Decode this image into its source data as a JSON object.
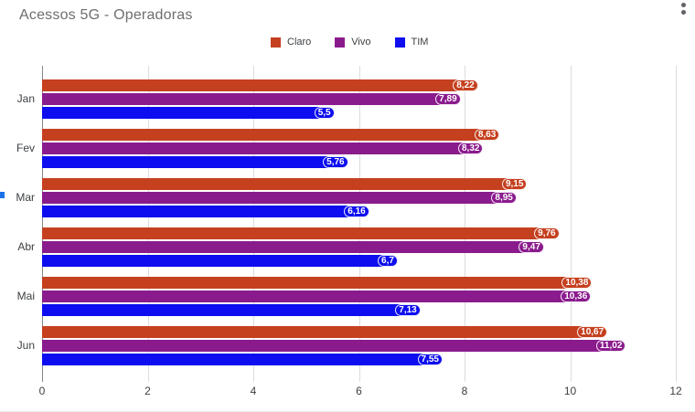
{
  "chart_data": {
    "type": "bar",
    "orientation": "horizontal",
    "title": "Acessos 5G - Operadoras",
    "categories": [
      "Jan",
      "Fev",
      "Mar",
      "Abr",
      "Mai",
      "Jun"
    ],
    "series": [
      {
        "name": "Claro",
        "color": "#C5401F",
        "values": [
          8.22,
          8.63,
          9.15,
          9.76,
          10.38,
          10.67
        ],
        "labels": [
          "8,22",
          "8,63",
          "9,15",
          "9,76",
          "10,38",
          "10,67"
        ]
      },
      {
        "name": "Vivo",
        "color": "#8A1B8D",
        "values": [
          7.89,
          8.32,
          8.95,
          9.47,
          10.36,
          11.02
        ],
        "labels": [
          "7,89",
          "8,32",
          "8,95",
          "9,47",
          "10,36",
          "11,02"
        ]
      },
      {
        "name": "TIM",
        "color": "#0D0DEF",
        "values": [
          5.5,
          5.76,
          6.16,
          6.7,
          7.13,
          7.55
        ],
        "labels": [
          "5,5",
          "5,76",
          "6,16",
          "6,7",
          "7,13",
          "7,55"
        ]
      }
    ],
    "x_axis": {
      "min": 0,
      "max": 12,
      "ticks": [
        0,
        2,
        4,
        6,
        8,
        10,
        12
      ]
    },
    "legend_position": "top",
    "grid": true,
    "value_label_decimal_separator": ","
  },
  "header": {
    "more_options_icon": "vertical-dots"
  },
  "colors": {
    "background": "#FFFFFF",
    "title_text": "#6E6E6E",
    "gridline": "#DADCE0",
    "axis_line": "#80868B",
    "tick_label": "#3C4043",
    "category_label": "#3C4043",
    "legend_label": "#3C4043",
    "value_label_text": "#FFFFFF",
    "menu_dots": "#5F6368",
    "edge_artifact": "#1A73E8"
  }
}
